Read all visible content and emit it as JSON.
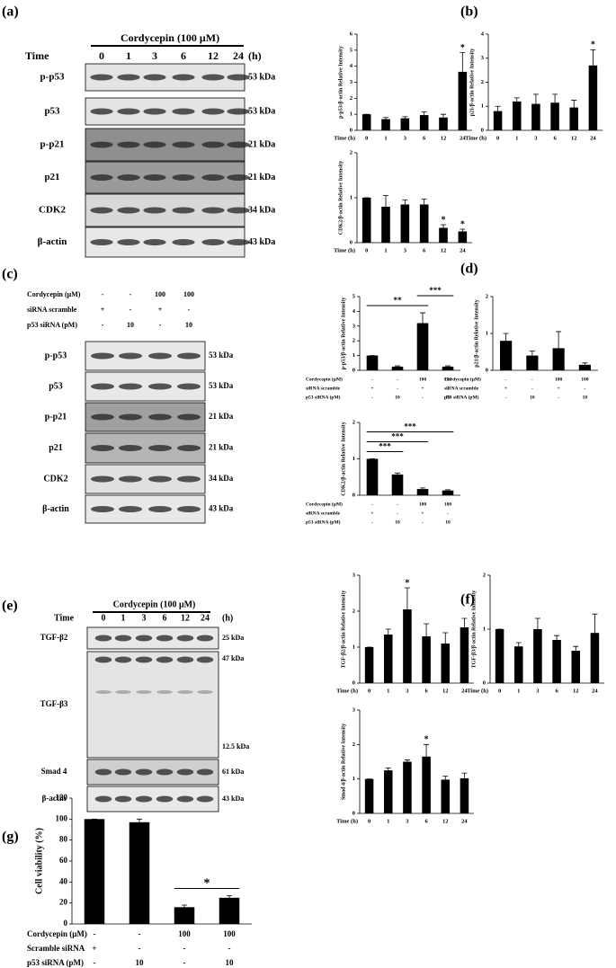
{
  "panel_labels": [
    "(a)",
    "(b)",
    "(c)",
    "(d)",
    "(e)",
    "(f)",
    "(g)"
  ],
  "blots": [
    {
      "header": "Cordycepin (100 μM)",
      "time_label": "Time",
      "lanes": [
        "0",
        "1",
        "3",
        "6",
        "12",
        "24"
      ],
      "unit": "(h)",
      "rows": [
        {
          "label": "p-p53",
          "sizes": [
            "53 kDa"
          ]
        },
        {
          "label": "p53",
          "sizes": [
            "53 kDa"
          ]
        },
        {
          "label": "p-p21",
          "sizes": [
            "21 kDa"
          ]
        },
        {
          "label": "p21",
          "sizes": [
            "21 kDa"
          ]
        },
        {
          "label": "CDK2",
          "sizes": [
            "34 kDa"
          ]
        },
        {
          "label": "β-actin",
          "sizes": [
            "43 kDa"
          ]
        }
      ]
    },
    {
      "treatments": [
        {
          "label": "Cordycepin (μM)",
          "values": [
            "-",
            "-",
            "100",
            "100"
          ]
        },
        {
          "label": "siRNA scramble",
          "values": [
            "+",
            "-",
            "+",
            "-"
          ]
        },
        {
          "label": "p53 siRNA (pM)",
          "values": [
            "-",
            "10",
            "-",
            "10"
          ]
        }
      ],
      "rows": [
        {
          "label": "p-p53",
          "sizes": [
            "53 kDa"
          ]
        },
        {
          "label": "p53",
          "sizes": [
            "53 kDa"
          ]
        },
        {
          "label": "p-p21",
          "sizes": [
            "21 kDa"
          ]
        },
        {
          "label": "p21",
          "sizes": [
            "21 kDa"
          ]
        },
        {
          "label": "CDK2",
          "sizes": [
            "34 kDa"
          ]
        },
        {
          "label": "β-actin",
          "sizes": [
            "43 kDa"
          ]
        }
      ]
    },
    {
      "header": "Cordycepin (100 μM)",
      "time_label": "Time",
      "lanes": [
        "0",
        "1",
        "3",
        "6",
        "12",
        "24"
      ],
      "unit": "(h)",
      "rows": [
        {
          "label": "TGF-β2",
          "sizes": [
            "25 kDa"
          ]
        },
        {
          "label": "TGF-β3",
          "sizes": [
            "47 kDa",
            "12.5 kDa"
          ]
        },
        {
          "label": "Smad 4",
          "sizes": [
            "61 kDa"
          ]
        },
        {
          "label": "β-actin",
          "sizes": [
            "43 kDa"
          ]
        }
      ]
    }
  ],
  "chart_data": [
    {
      "type": "bar",
      "ylabel": "p-p53/β-actin Relative Intensity",
      "xlabel": "Time (h)",
      "categories": [
        "0",
        "1",
        "3",
        "6",
        "12",
        "24"
      ],
      "values": [
        1,
        0.7,
        0.75,
        0.95,
        0.8,
        3.65
      ],
      "errors": [
        0,
        0.1,
        0.1,
        0.2,
        0.2,
        1.2
      ],
      "color": "#000000",
      "ylim": [
        0,
        6
      ],
      "yticks": [
        0,
        1,
        2,
        3,
        4,
        5,
        6
      ],
      "annotations": [
        {
          "text": "*",
          "index": 5
        }
      ]
    },
    {
      "type": "bar",
      "ylabel": "p21/β-actin Relative Intensity",
      "xlabel": "Time (h)",
      "categories": [
        "0",
        "1",
        "3",
        "6",
        "12",
        "24"
      ],
      "values": [
        0.8,
        1.2,
        1.1,
        1.15,
        0.95,
        2.7
      ],
      "errors": [
        0.2,
        0.15,
        0.4,
        0.35,
        0.3,
        0.65
      ],
      "color": "#000000",
      "ylim": [
        0,
        4
      ],
      "yticks": [
        0,
        1,
        2,
        3,
        4
      ],
      "annotations": [
        {
          "text": "*",
          "index": 5
        }
      ]
    },
    {
      "type": "bar",
      "ylabel": "CDK2/β-actin Relative Intensity",
      "xlabel": "Time (h)",
      "categories": [
        "0",
        "1",
        "3",
        "6",
        "12",
        "24"
      ],
      "values": [
        1,
        0.8,
        0.85,
        0.85,
        0.33,
        0.25
      ],
      "errors": [
        0,
        0.25,
        0.1,
        0.12,
        0.07,
        0.05
      ],
      "color": "#000000",
      "ylim": [
        0,
        2
      ],
      "yticks": [
        0,
        1,
        2
      ],
      "annotations": [
        {
          "text": "*",
          "index": 4
        },
        {
          "text": "*",
          "index": 5
        }
      ]
    },
    {
      "type": "bar",
      "ylabel": "p-p53/β-actin Relative Intensity",
      "treatments": [
        {
          "label": "Cordycepin (μM)",
          "values": [
            "-",
            "-",
            "100",
            "100"
          ]
        },
        {
          "label": "siRNA scramble",
          "values": [
            "+",
            "-",
            "+",
            "-"
          ]
        },
        {
          "label": "p53 siRNA (pM)",
          "values": [
            "-",
            "10",
            "-",
            "10"
          ]
        }
      ],
      "values": [
        1,
        0.25,
        3.2,
        0.25
      ],
      "errors": [
        0,
        0.05,
        0.7,
        0.05
      ],
      "color": "#000000",
      "ylim": [
        0,
        5
      ],
      "yticks": [
        0,
        1,
        2,
        3,
        4,
        5
      ],
      "brackets": [
        {
          "text": "**",
          "from": 0,
          "to": 2
        },
        {
          "text": "***",
          "from": 2,
          "to": 3
        }
      ]
    },
    {
      "type": "bar",
      "ylabel": "p21/β-actin Relative Intensity",
      "treatments": [
        {
          "label": "Cordycepin (μM)",
          "values": [
            "-",
            "-",
            "100",
            "100"
          ]
        },
        {
          "label": "siRNA scramble",
          "values": [
            "+",
            "-",
            "+",
            "-"
          ]
        },
        {
          "label": "p53 siRNA (pM)",
          "values": [
            "-",
            "10",
            "-",
            "10"
          ]
        }
      ],
      "values": [
        0.8,
        0.4,
        0.6,
        0.15
      ],
      "errors": [
        0.2,
        0.12,
        0.45,
        0.05
      ],
      "color": "#000000",
      "ylim": [
        0,
        2
      ],
      "yticks": [
        0,
        1,
        2
      ]
    },
    {
      "type": "bar",
      "ylabel": "CDK2/β-actin Relative Intensity",
      "treatments": [
        {
          "label": "Cordycepin (μM)",
          "values": [
            "-",
            "-",
            "100",
            "100"
          ]
        },
        {
          "label": "siRNA scramble",
          "values": [
            "+",
            "-",
            "+",
            "-"
          ]
        },
        {
          "label": "p53 siRNA (pM)",
          "values": [
            "-",
            "10",
            "-",
            "10"
          ]
        }
      ],
      "values": [
        1,
        0.57,
        0.17,
        0.13
      ],
      "errors": [
        0,
        0.04,
        0.03,
        0.02
      ],
      "color": "#000000",
      "ylim": [
        0,
        2
      ],
      "yticks": [
        0,
        1,
        2
      ],
      "brackets": [
        {
          "text": "***",
          "from": 0,
          "to": 1
        },
        {
          "text": "***",
          "from": 0,
          "to": 2
        },
        {
          "text": "***",
          "from": 0,
          "to": 3
        }
      ]
    },
    {
      "type": "bar",
      "ylabel": "TGF-β2/β-actin Relative Intensity",
      "xlabel": "Time (h)",
      "categories": [
        "0",
        "1",
        "3",
        "6",
        "12",
        "24"
      ],
      "values": [
        1,
        1.35,
        2.05,
        1.3,
        1.1,
        1.55
      ],
      "errors": [
        0,
        0.15,
        0.6,
        0.35,
        0.3,
        0.25
      ],
      "color": "#000000",
      "ylim": [
        0,
        3
      ],
      "yticks": [
        0,
        1,
        2,
        3
      ],
      "annotations": [
        {
          "text": "*",
          "index": 2
        }
      ]
    },
    {
      "type": "bar",
      "ylabel": "TGF-β3/β-actin Relative Intensity",
      "xlabel": "Time (h)",
      "categories": [
        "0",
        "1",
        "3",
        "6",
        "12",
        "24"
      ],
      "values": [
        1,
        0.68,
        1,
        0.8,
        0.6,
        0.93
      ],
      "errors": [
        0,
        0.07,
        0.2,
        0.08,
        0.08,
        0.35
      ],
      "color": "#000000",
      "ylim": [
        0,
        2
      ],
      "yticks": [
        0,
        1,
        2
      ]
    },
    {
      "type": "bar",
      "ylabel": "Smad 4/β-actin Relative Intensity",
      "xlabel": "Time (h)",
      "categories": [
        "0",
        "1",
        "3",
        "6",
        "12",
        "24"
      ],
      "values": [
        1,
        1.25,
        1.5,
        1.65,
        0.98,
        1.02
      ],
      "errors": [
        0,
        0.07,
        0.05,
        0.35,
        0.1,
        0.15
      ],
      "color": "#000000",
      "ylim": [
        0,
        3
      ],
      "yticks": [
        0,
        1,
        2,
        3
      ],
      "annotations": [
        {
          "text": "*",
          "index": 3
        }
      ]
    },
    {
      "type": "bar",
      "ylabel": "Cell viability (%)",
      "treatments": [
        {
          "label": "Cordycepin (μM)",
          "values": [
            "-",
            "-",
            "100",
            "100"
          ]
        },
        {
          "label": "Scramble siRNA",
          "values": [
            "+",
            "-",
            "-",
            "-"
          ]
        },
        {
          "label": "p53 siRNA (pM)",
          "values": [
            "-",
            "10",
            "-",
            "10"
          ]
        }
      ],
      "values": [
        100,
        97,
        16,
        25
      ],
      "errors": [
        0,
        3,
        2,
        2
      ],
      "color": "#000000",
      "ylim": [
        0,
        120
      ],
      "yticks": [
        0,
        20,
        40,
        60,
        80,
        100,
        120
      ],
      "brackets": [
        {
          "text": "*",
          "from": 2,
          "to": 3
        }
      ]
    }
  ]
}
